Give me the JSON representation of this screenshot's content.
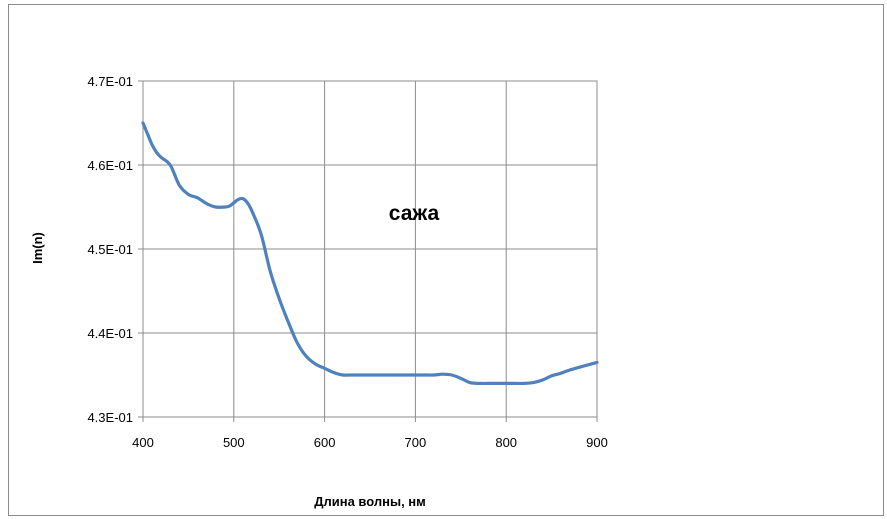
{
  "chart_data": {
    "type": "line",
    "title": "",
    "xlabel": "Длина волны, нм",
    "ylabel": "Im(n)",
    "xlim": [
      400,
      900
    ],
    "ylim": [
      0.43,
      0.47
    ],
    "x_ticks": [
      400,
      500,
      600,
      700,
      800,
      900
    ],
    "y_ticks": [
      0.43,
      0.44,
      0.45,
      0.46,
      0.47
    ],
    "x_tick_labels": [
      "400",
      "500",
      "600",
      "700",
      "800",
      "900"
    ],
    "y_tick_labels": [
      "4.3E-01",
      "4.4E-01",
      "4.5E-01",
      "4.6E-01",
      "4.7E-01"
    ],
    "grid": true,
    "legend": "none",
    "annotation": "сажа",
    "series_color": "#4f81bd",
    "series": [
      {
        "x": [
          400,
          405,
          410,
          415,
          420,
          430,
          440,
          450,
          460,
          470,
          480,
          490,
          495,
          500,
          505,
          510,
          515,
          520,
          530,
          540,
          550,
          560,
          570,
          580,
          590,
          600,
          610,
          620,
          630,
          640,
          650,
          660,
          670,
          680,
          690,
          700,
          710,
          720,
          730,
          740,
          750,
          760,
          770,
          780,
          790,
          800,
          810,
          820,
          830,
          840,
          850,
          860,
          870,
          880,
          890,
          900
        ],
        "y": [
          0.465,
          0.4637,
          0.4624,
          0.4615,
          0.4609,
          0.46,
          0.4576,
          0.4565,
          0.4561,
          0.4554,
          0.455,
          0.455,
          0.4551,
          0.4555,
          0.4559,
          0.456,
          0.4555,
          0.4545,
          0.4518,
          0.4474,
          0.4441,
          0.4413,
          0.4388,
          0.4372,
          0.4363,
          0.4358,
          0.4353,
          0.435,
          0.435,
          0.435,
          0.435,
          0.435,
          0.435,
          0.435,
          0.435,
          0.435,
          0.435,
          0.435,
          0.4351,
          0.435,
          0.4346,
          0.4341,
          0.434,
          0.434,
          0.434,
          0.434,
          0.434,
          0.434,
          0.4341,
          0.4344,
          0.4349,
          0.4352,
          0.4356,
          0.4359,
          0.4362,
          0.4365
        ]
      }
    ]
  }
}
